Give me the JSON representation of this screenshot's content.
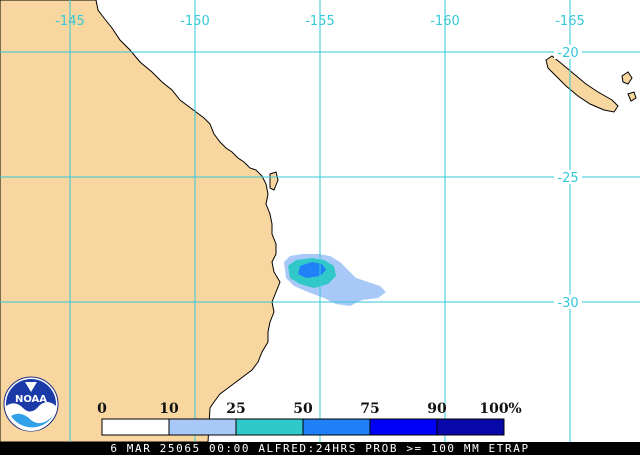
{
  "map": {
    "longitude_labels": [
      "-145",
      "-150",
      "-155",
      "-160",
      "-165"
    ],
    "latitude_labels": [
      "-20",
      "-25",
      "-30"
    ],
    "colors": {
      "land": "#f8d6a0",
      "ocean": "#ffffff",
      "coast": "#000000",
      "grid": "#33c8d8"
    }
  },
  "legend": {
    "percent_labels": [
      "0",
      "10",
      "25",
      "50",
      "75",
      "90",
      "100"
    ],
    "percent_sign": "%",
    "bins": [
      {
        "from": 0,
        "to": 10,
        "color": "#ffffff"
      },
      {
        "from": 10,
        "to": 25,
        "color": "#a8c8f8"
      },
      {
        "from": 25,
        "to": 50,
        "color": "#30c8c8"
      },
      {
        "from": 50,
        "to": 75,
        "color": "#2080f8"
      },
      {
        "from": 75,
        "to": 90,
        "color": "#0000f8"
      },
      {
        "from": 90,
        "to": 100,
        "color": "#0808a8"
      }
    ]
  },
  "logo": {
    "text": "NOAA"
  },
  "footer": {
    "caption": "6 MAR 25065 00:00 ALFRED:24HRS PROB >= 100 MM ETRAP"
  }
}
